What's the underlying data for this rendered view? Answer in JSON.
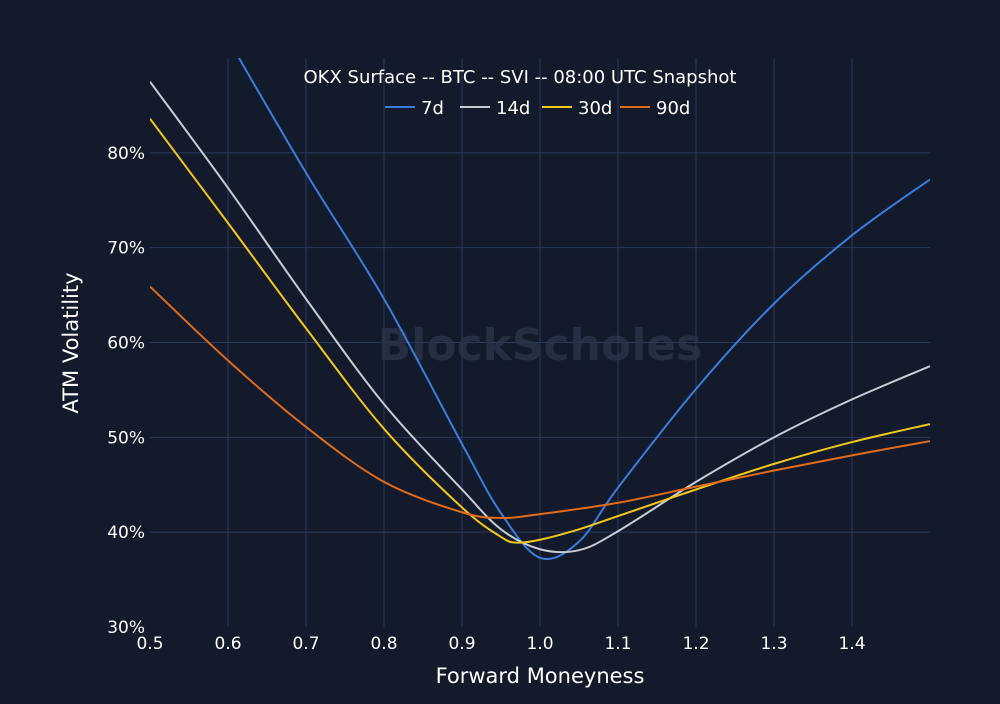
{
  "chart_data": {
    "type": "line",
    "title": "OKX Surface -- BTC -- SVI -- 08:00 UTC Snapshot",
    "xlabel": "Forward Moneyness",
    "ylabel": "ATM Volatility",
    "xlim": [
      0.5,
      1.5
    ],
    "ylim": [
      30,
      90
    ],
    "x_ticks": [
      "0.5",
      "0.6",
      "0.7",
      "0.8",
      "0.9",
      "1.0",
      "1.1",
      "1.2",
      "1.3",
      "1.4"
    ],
    "y_ticks": [
      "30%",
      "40%",
      "50%",
      "60%",
      "70%",
      "80%"
    ],
    "grid": true,
    "legend_position": "top-center",
    "watermark": "BlockScholes",
    "background": "#121a2b",
    "series": [
      {
        "name": "7d",
        "color": "#3b7ddd",
        "x": [
          0.6,
          0.7,
          0.8,
          0.9,
          0.95,
          1.0,
          1.05,
          1.1,
          1.2,
          1.3,
          1.4,
          1.5
        ],
        "y": [
          92,
          77.9,
          64.6,
          49.3,
          42.0,
          37.3,
          39.0,
          44.7,
          55.1,
          64.1,
          71.3,
          77.2
        ]
      },
      {
        "name": "14d",
        "color": "#c8ccd4",
        "x": [
          0.5,
          0.6,
          0.7,
          0.8,
          0.9,
          0.95,
          1.0,
          1.05,
          1.1,
          1.2,
          1.3,
          1.4,
          1.5
        ],
        "y": [
          87.5,
          76.3,
          64.6,
          53.5,
          44.5,
          40.3,
          38.2,
          38.1,
          40.1,
          45.3,
          50.0,
          54.0,
          57.5
        ]
      },
      {
        "name": "30d",
        "color": "#f2c81a",
        "x": [
          0.5,
          0.6,
          0.7,
          0.8,
          0.9,
          0.95,
          0.97,
          1.0,
          1.05,
          1.1,
          1.2,
          1.3,
          1.4,
          1.5
        ],
        "y": [
          83.6,
          72.6,
          61.5,
          50.9,
          42.6,
          39.5,
          38.9,
          39.2,
          40.3,
          41.7,
          44.5,
          47.2,
          49.5,
          51.4
        ]
      },
      {
        "name": "90d",
        "color": "#e06c1c",
        "x": [
          0.5,
          0.6,
          0.7,
          0.8,
          0.9,
          0.95,
          1.0,
          1.1,
          1.2,
          1.3,
          1.4,
          1.5
        ],
        "y": [
          65.9,
          58.1,
          51.1,
          45.3,
          42.1,
          41.5,
          41.9,
          43.1,
          44.8,
          46.5,
          48.1,
          49.6
        ]
      }
    ]
  }
}
